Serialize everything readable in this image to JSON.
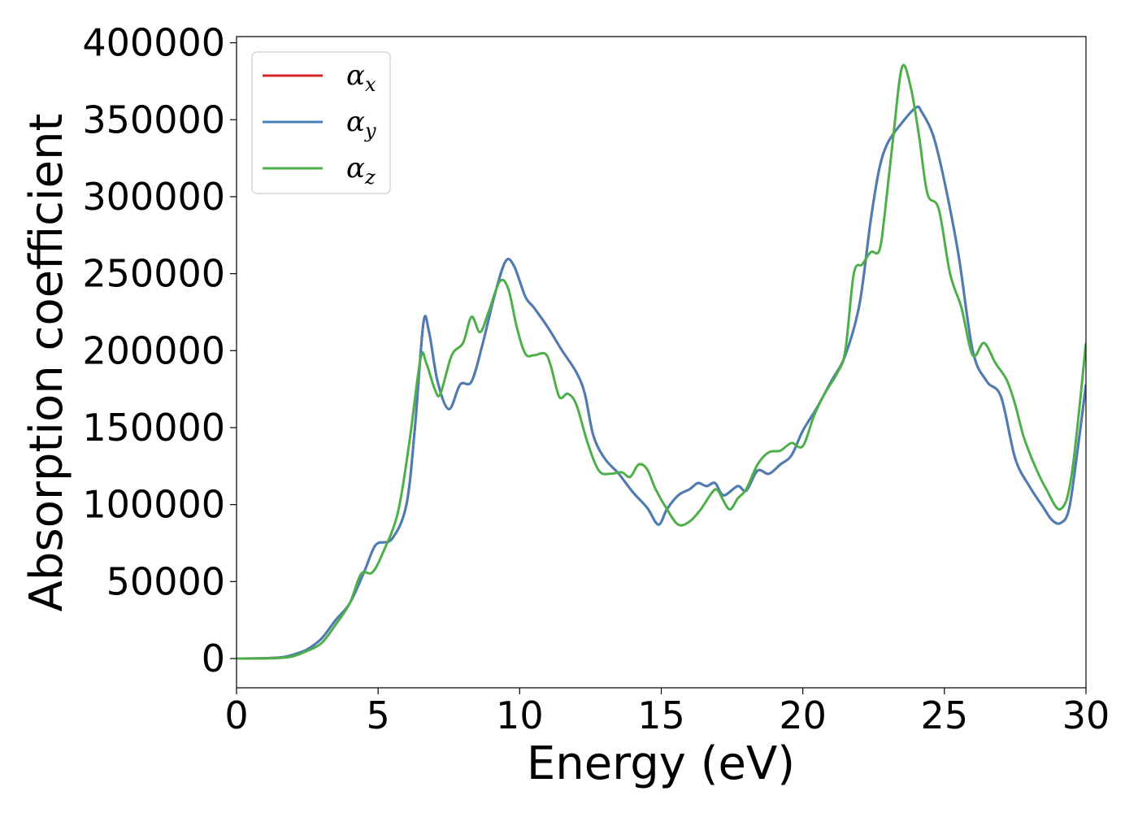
{
  "chart_data": {
    "type": "line",
    "title": "",
    "xlabel": "Energy (eV)",
    "ylabel": "Absorption coefficient",
    "xlim": [
      0,
      30
    ],
    "ylim": [
      -19000,
      404000
    ],
    "xticks": [
      0,
      5,
      10,
      15,
      20,
      25,
      30
    ],
    "yticks": [
      0,
      50000,
      100000,
      150000,
      200000,
      250000,
      300000,
      350000,
      400000
    ],
    "grid": false,
    "legend_position": "top-left",
    "series": [
      {
        "name": "αx",
        "legend_symbol": "α",
        "legend_subscript": "x",
        "color": "#d62728",
        "points": [
          [
            0,
            0
          ],
          [
            1,
            200
          ],
          [
            1.6,
            800
          ],
          [
            2,
            2500
          ],
          [
            2.5,
            6000
          ],
          [
            3,
            13000
          ],
          [
            3.5,
            25000
          ],
          [
            4,
            36000
          ],
          [
            4.5,
            56000
          ],
          [
            4.8,
            70000
          ],
          [
            5,
            75000
          ],
          [
            5.5,
            78000
          ],
          [
            6,
            100000
          ],
          [
            6.3,
            150000
          ],
          [
            6.6,
            218000
          ],
          [
            6.8,
            212000
          ],
          [
            7.1,
            180000
          ],
          [
            7.5,
            162000
          ],
          [
            7.9,
            178000
          ],
          [
            8.3,
            180000
          ],
          [
            8.7,
            205000
          ],
          [
            9.1,
            235000
          ],
          [
            9.5,
            258000
          ],
          [
            9.8,
            255000
          ],
          [
            10.2,
            235000
          ],
          [
            10.5,
            228000
          ],
          [
            11,
            215000
          ],
          [
            11.5,
            200000
          ],
          [
            12,
            186000
          ],
          [
            12.3,
            172000
          ],
          [
            12.6,
            145000
          ],
          [
            13,
            130000
          ],
          [
            13.5,
            120000
          ],
          [
            14,
            108000
          ],
          [
            14.5,
            98000
          ],
          [
            14.9,
            87000
          ],
          [
            15.2,
            97000
          ],
          [
            15.6,
            106000
          ],
          [
            16,
            110000
          ],
          [
            16.3,
            114000
          ],
          [
            16.6,
            112000
          ],
          [
            16.9,
            114000
          ],
          [
            17.2,
            106000
          ],
          [
            17.7,
            112000
          ],
          [
            18,
            109000
          ],
          [
            18.4,
            122000
          ],
          [
            18.8,
            120000
          ],
          [
            19.2,
            126000
          ],
          [
            19.6,
            132000
          ],
          [
            20,
            148000
          ],
          [
            20.5,
            163000
          ],
          [
            21,
            180000
          ],
          [
            21.5,
            197000
          ],
          [
            22,
            230000
          ],
          [
            22.4,
            285000
          ],
          [
            22.7,
            318000
          ],
          [
            23,
            335000
          ],
          [
            23.5,
            348000
          ],
          [
            24,
            358000
          ],
          [
            24.2,
            355000
          ],
          [
            24.6,
            340000
          ],
          [
            25,
            310000
          ],
          [
            25.5,
            262000
          ],
          [
            26,
            200000
          ],
          [
            26.5,
            180000
          ],
          [
            27,
            170000
          ],
          [
            27.5,
            130000
          ],
          [
            28,
            112000
          ],
          [
            28.5,
            98000
          ],
          [
            28.8,
            90000
          ],
          [
            29.1,
            88000
          ],
          [
            29.4,
            97000
          ],
          [
            29.7,
            135000
          ],
          [
            30,
            178000
          ]
        ]
      },
      {
        "name": "αy",
        "legend_symbol": "α",
        "legend_subscript": "y",
        "color": "#4a7fb5",
        "points": [
          [
            0,
            0
          ],
          [
            1,
            200
          ],
          [
            1.6,
            800
          ],
          [
            2,
            2500
          ],
          [
            2.5,
            6000
          ],
          [
            3,
            13000
          ],
          [
            3.5,
            25000
          ],
          [
            4,
            36000
          ],
          [
            4.5,
            56000
          ],
          [
            4.8,
            70000
          ],
          [
            5,
            75000
          ],
          [
            5.5,
            78000
          ],
          [
            6,
            100000
          ],
          [
            6.3,
            150000
          ],
          [
            6.6,
            218000
          ],
          [
            6.8,
            212000
          ],
          [
            7.1,
            180000
          ],
          [
            7.5,
            162000
          ],
          [
            7.9,
            178000
          ],
          [
            8.3,
            180000
          ],
          [
            8.7,
            205000
          ],
          [
            9.1,
            235000
          ],
          [
            9.5,
            258000
          ],
          [
            9.8,
            255000
          ],
          [
            10.2,
            235000
          ],
          [
            10.5,
            228000
          ],
          [
            11,
            215000
          ],
          [
            11.5,
            200000
          ],
          [
            12,
            186000
          ],
          [
            12.3,
            172000
          ],
          [
            12.6,
            145000
          ],
          [
            13,
            130000
          ],
          [
            13.5,
            120000
          ],
          [
            14,
            108000
          ],
          [
            14.5,
            98000
          ],
          [
            14.9,
            87000
          ],
          [
            15.2,
            97000
          ],
          [
            15.6,
            106000
          ],
          [
            16,
            110000
          ],
          [
            16.3,
            114000
          ],
          [
            16.6,
            112000
          ],
          [
            16.9,
            114000
          ],
          [
            17.2,
            106000
          ],
          [
            17.7,
            112000
          ],
          [
            18,
            109000
          ],
          [
            18.4,
            122000
          ],
          [
            18.8,
            120000
          ],
          [
            19.2,
            126000
          ],
          [
            19.6,
            132000
          ],
          [
            20,
            148000
          ],
          [
            20.5,
            163000
          ],
          [
            21,
            180000
          ],
          [
            21.5,
            197000
          ],
          [
            22,
            230000
          ],
          [
            22.4,
            285000
          ],
          [
            22.7,
            318000
          ],
          [
            23,
            335000
          ],
          [
            23.5,
            348000
          ],
          [
            24,
            358000
          ],
          [
            24.2,
            355000
          ],
          [
            24.6,
            340000
          ],
          [
            25,
            310000
          ],
          [
            25.5,
            262000
          ],
          [
            26,
            200000
          ],
          [
            26.5,
            180000
          ],
          [
            27,
            170000
          ],
          [
            27.5,
            130000
          ],
          [
            28,
            112000
          ],
          [
            28.5,
            98000
          ],
          [
            28.8,
            90000
          ],
          [
            29.1,
            88000
          ],
          [
            29.4,
            97000
          ],
          [
            29.7,
            135000
          ],
          [
            30,
            178000
          ]
        ]
      },
      {
        "name": "αz",
        "legend_symbol": "α",
        "legend_subscript": "z",
        "color": "#4daf4a",
        "points": [
          [
            0,
            0
          ],
          [
            1,
            100
          ],
          [
            1.6,
            500
          ],
          [
            2,
            1500
          ],
          [
            2.5,
            5000
          ],
          [
            3,
            10000
          ],
          [
            3.5,
            22000
          ],
          [
            4,
            36000
          ],
          [
            4.4,
            55000
          ],
          [
            4.8,
            56000
          ],
          [
            5.2,
            70000
          ],
          [
            5.7,
            95000
          ],
          [
            6.1,
            140000
          ],
          [
            6.5,
            195000
          ],
          [
            6.7,
            192000
          ],
          [
            7,
            175000
          ],
          [
            7.2,
            172000
          ],
          [
            7.6,
            197000
          ],
          [
            8,
            205000
          ],
          [
            8.3,
            222000
          ],
          [
            8.6,
            212000
          ],
          [
            8.9,
            225000
          ],
          [
            9.3,
            245000
          ],
          [
            9.6,
            240000
          ],
          [
            9.9,
            215000
          ],
          [
            10.2,
            198000
          ],
          [
            10.5,
            197000
          ],
          [
            10.9,
            198000
          ],
          [
            11.1,
            190000
          ],
          [
            11.4,
            170000
          ],
          [
            11.7,
            172000
          ],
          [
            12,
            165000
          ],
          [
            12.4,
            140000
          ],
          [
            12.8,
            122000
          ],
          [
            13.2,
            120000
          ],
          [
            13.6,
            121000
          ],
          [
            13.9,
            118000
          ],
          [
            14.2,
            126000
          ],
          [
            14.5,
            123000
          ],
          [
            14.8,
            110000
          ],
          [
            15.2,
            97000
          ],
          [
            15.6,
            87000
          ],
          [
            16,
            89000
          ],
          [
            16.4,
            97000
          ],
          [
            16.8,
            108000
          ],
          [
            17,
            109000
          ],
          [
            17.4,
            97000
          ],
          [
            17.7,
            104000
          ],
          [
            18,
            110000
          ],
          [
            18.4,
            126000
          ],
          [
            18.8,
            134000
          ],
          [
            19.2,
            135000
          ],
          [
            19.6,
            140000
          ],
          [
            20,
            138000
          ],
          [
            20.4,
            158000
          ],
          [
            20.8,
            173000
          ],
          [
            21.2,
            185000
          ],
          [
            21.5,
            200000
          ],
          [
            21.8,
            250000
          ],
          [
            22.1,
            256000
          ],
          [
            22.4,
            264000
          ],
          [
            22.7,
            265000
          ],
          [
            22.9,
            290000
          ],
          [
            23.2,
            340000
          ],
          [
            23.5,
            384000
          ],
          [
            23.8,
            372000
          ],
          [
            24.1,
            340000
          ],
          [
            24.4,
            302000
          ],
          [
            24.8,
            292000
          ],
          [
            25.2,
            250000
          ],
          [
            25.6,
            228000
          ],
          [
            26,
            197000
          ],
          [
            26.4,
            205000
          ],
          [
            26.8,
            192000
          ],
          [
            27.2,
            181000
          ],
          [
            27.5,
            165000
          ],
          [
            27.8,
            144000
          ],
          [
            28.2,
            125000
          ],
          [
            28.6,
            110000
          ],
          [
            29.1,
            97000
          ],
          [
            29.5,
            120000
          ],
          [
            30,
            205000
          ]
        ]
      }
    ]
  }
}
